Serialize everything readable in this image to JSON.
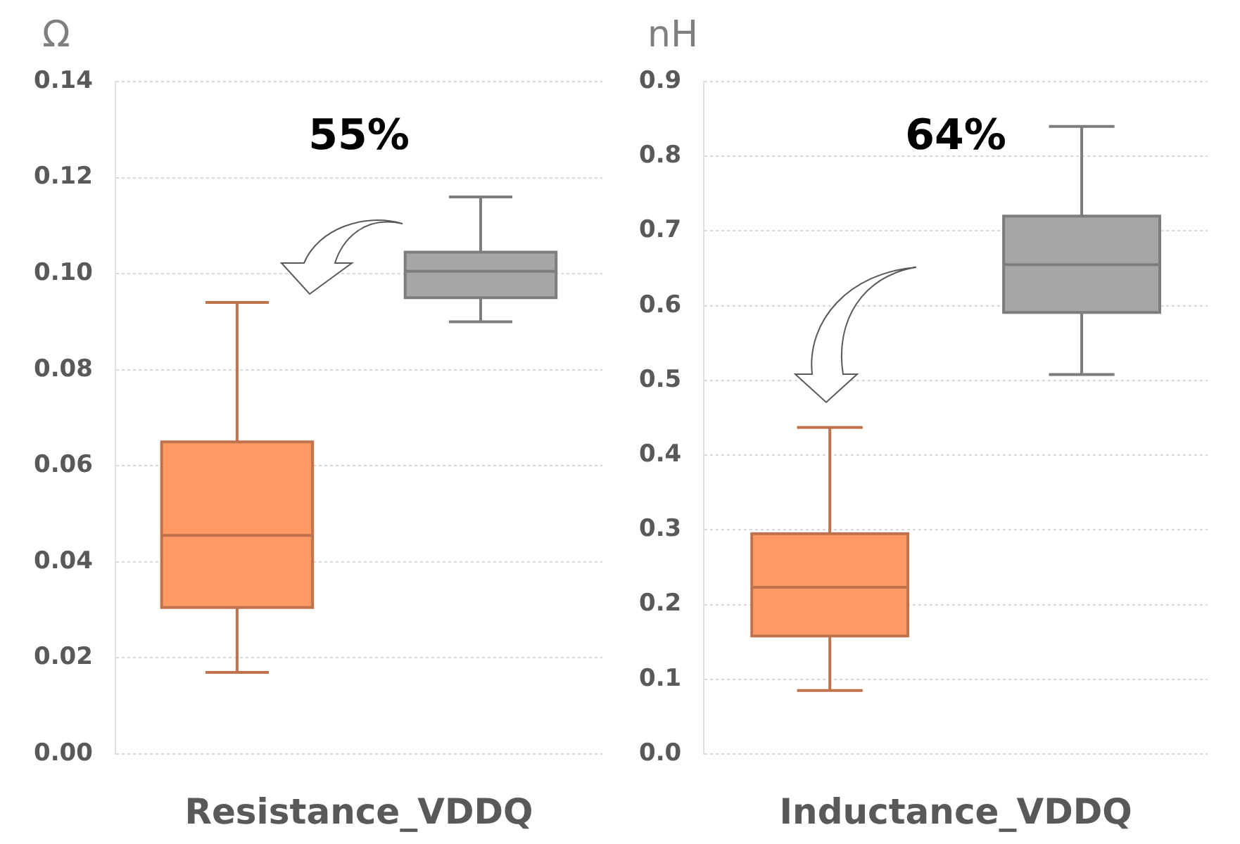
{
  "chart_data": [
    {
      "type": "box",
      "ylabel": "Ω",
      "xlabel": "Resistance_VDDQ",
      "categories": [
        null,
        null
      ],
      "colors": [
        "#ff9966",
        "#a6a6a6"
      ],
      "boxes": [
        {
          "low": 0.017,
          "q1": 0.0305,
          "median": 0.0455,
          "q3": 0.065,
          "high": 0.094
        },
        {
          "low": 0.09,
          "q1": 0.095,
          "median": 0.1005,
          "q3": 0.1045,
          "high": 0.116
        }
      ],
      "ylim": [
        0,
        0.14
      ],
      "yticks": [
        {
          "value": 0,
          "label": "0.00"
        },
        {
          "value": 0.02,
          "label": "0.02"
        },
        {
          "value": 0.04,
          "label": "0.04"
        },
        {
          "value": 0.06,
          "label": "0.06"
        },
        {
          "value": 0.08,
          "label": "0.08"
        },
        {
          "value": 0.1,
          "label": "0.10"
        },
        {
          "value": 0.12,
          "label": "0.12"
        },
        {
          "value": 0.14,
          "label": "0.14"
        }
      ],
      "grid": "y",
      "annotations": [
        "55%"
      ]
    },
    {
      "type": "box",
      "ylabel": "nH",
      "xlabel": "Inductance_VDDQ",
      "categories": [
        null,
        null
      ],
      "colors": [
        "#ff9966",
        "#a6a6a6"
      ],
      "boxes": [
        {
          "low": 0.085,
          "q1": 0.158,
          "median": 0.223,
          "q3": 0.295,
          "high": 0.437
        },
        {
          "low": 0.508,
          "q1": 0.591,
          "median": 0.655,
          "q3": 0.72,
          "high": 0.84
        }
      ],
      "ylim": [
        0,
        0.9
      ],
      "yticks": [
        {
          "value": 0,
          "label": "0.0"
        },
        {
          "value": 0.1,
          "label": "0.1"
        },
        {
          "value": 0.2,
          "label": "0.2"
        },
        {
          "value": 0.3,
          "label": "0.3"
        },
        {
          "value": 0.4,
          "label": "0.4"
        },
        {
          "value": 0.5,
          "label": "0.5"
        },
        {
          "value": 0.6,
          "label": "0.6"
        },
        {
          "value": 0.7,
          "label": "0.7"
        },
        {
          "value": 0.8,
          "label": "0.8"
        },
        {
          "value": 0.9,
          "label": "0.9"
        }
      ],
      "grid": "y",
      "annotations": [
        "64%"
      ]
    }
  ]
}
